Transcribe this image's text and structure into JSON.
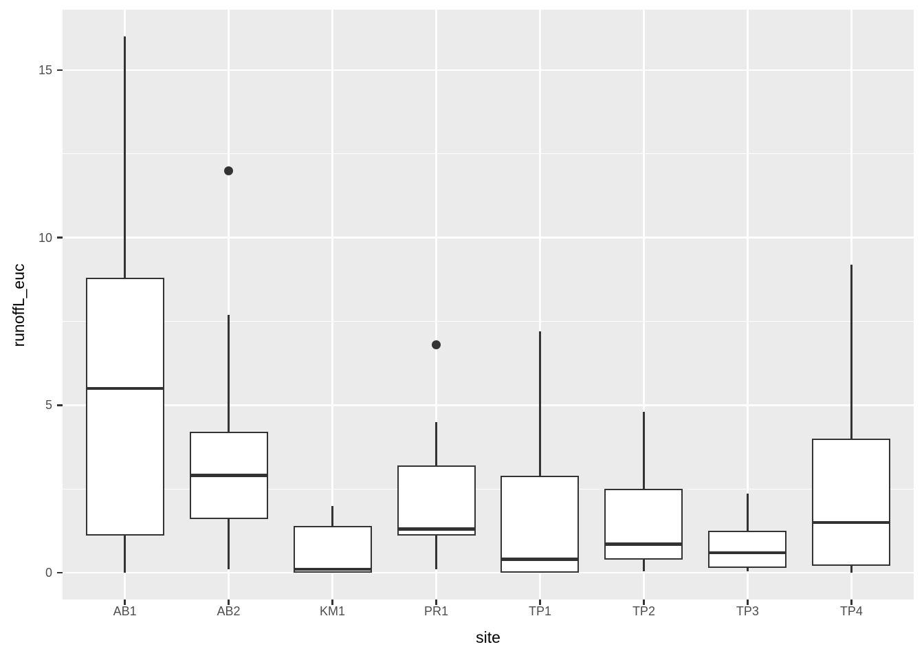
{
  "chart_data": {
    "type": "boxplot",
    "title": "",
    "xlabel": "site",
    "ylabel": "runoffL_euc",
    "categories": [
      "AB1",
      "AB2",
      "KM1",
      "PR1",
      "TP1",
      "TP2",
      "TP3",
      "TP4"
    ],
    "y_tick_values": [
      0,
      5,
      10,
      15
    ],
    "y_tick_labels": [
      "0",
      "5",
      "10",
      "15"
    ],
    "y_minor_gridlines": [
      2.5,
      7.5,
      12.5
    ],
    "ylim": [
      -0.8,
      16.8
    ],
    "grid": "horizontal major+minor and vertical major white gridlines on grey panel",
    "legend_position": "none",
    "series": [
      {
        "category": "AB1",
        "min": 0.0,
        "q1": 1.1,
        "median": 5.5,
        "q3": 8.8,
        "max": 16.0,
        "outliers": []
      },
      {
        "category": "AB2",
        "min": 0.1,
        "q1": 1.6,
        "median": 2.9,
        "q3": 4.2,
        "max": 7.7,
        "outliers": [
          12.0
        ]
      },
      {
        "category": "KM1",
        "min": 0.0,
        "q1": 0.0,
        "median": 0.1,
        "q3": 1.4,
        "max": 2.0,
        "outliers": []
      },
      {
        "category": "PR1",
        "min": 0.1,
        "q1": 1.1,
        "median": 1.3,
        "q3": 3.2,
        "max": 4.5,
        "outliers": [
          6.8
        ]
      },
      {
        "category": "TP1",
        "min": 0.0,
        "q1": 0.0,
        "median": 0.4,
        "q3": 2.9,
        "max": 7.2,
        "outliers": []
      },
      {
        "category": "TP2",
        "min": 0.05,
        "q1": 0.4,
        "median": 0.85,
        "q3": 2.5,
        "max": 4.8,
        "outliers": []
      },
      {
        "category": "TP3",
        "min": 0.05,
        "q1": 0.15,
        "median": 0.6,
        "q3": 1.25,
        "max": 2.35,
        "outliers": []
      },
      {
        "category": "TP4",
        "min": 0.0,
        "q1": 0.2,
        "median": 1.5,
        "q3": 4.0,
        "max": 9.2,
        "outliers": []
      }
    ]
  },
  "colors": {
    "figure_bg": "#FFFFFF",
    "panel_bg": "#EBEBEB",
    "gridline": "#FFFFFF",
    "box_border": "#333333",
    "box_fill": "#FFFFFF",
    "median": "#333333",
    "whisker": "#333333",
    "outlier": "#333333",
    "axis_tick": "#333333",
    "tick_label": "#4D4D4D",
    "axis_title": "#000000"
  }
}
